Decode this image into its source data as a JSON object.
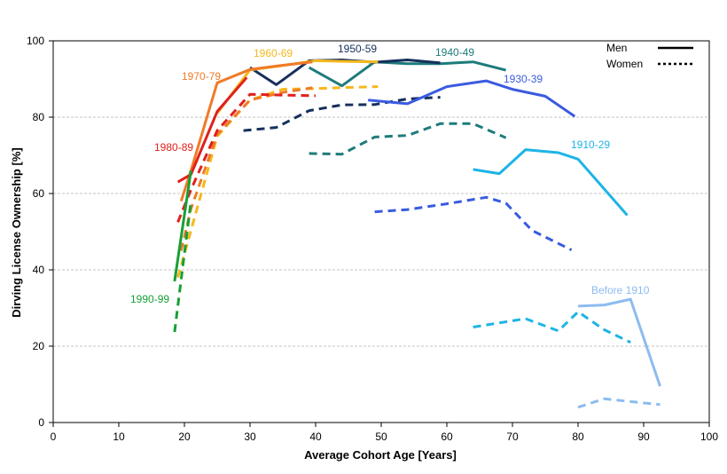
{
  "chart_data": {
    "type": "line",
    "title": "",
    "xlabel": "Average Cohort Age [Years]",
    "ylabel": "Dirving License Ownership [%]",
    "xlim": [
      0,
      100
    ],
    "ylim": [
      0,
      100
    ],
    "x_ticks": [
      0,
      10,
      20,
      30,
      40,
      50,
      60,
      70,
      80,
      90,
      100
    ],
    "y_ticks": [
      0,
      20,
      40,
      60,
      80,
      100
    ],
    "grid": "horizontal dashed",
    "legend": {
      "placement": "top-right",
      "entries": [
        {
          "label": "Men",
          "style": "solid"
        },
        {
          "label": "Women",
          "style": "dotted"
        }
      ]
    },
    "series": [
      {
        "cohort": "Before 1910",
        "color": "#8cbcf0",
        "label": "Before 1910",
        "men": {
          "x": [
            80,
            84,
            88,
            92.5
          ],
          "y": [
            30.5,
            30.8,
            32.3,
            9.5
          ]
        },
        "women": {
          "x": [
            80,
            84,
            88,
            92.5
          ],
          "y": [
            4,
            6.2,
            5.5,
            4.7
          ]
        }
      },
      {
        "cohort": "1910-29",
        "color": "#1eb4e6",
        "label": "1910-29",
        "men": {
          "x": [
            64,
            68,
            72,
            77,
            80,
            87.5
          ],
          "y": [
            66.3,
            65.2,
            71.5,
            70.7,
            69,
            54.3
          ]
        },
        "women": {
          "x": [
            64,
            72,
            77,
            80,
            84,
            88
          ],
          "y": [
            25,
            27.2,
            24,
            29,
            24.3,
            21
          ]
        }
      },
      {
        "cohort": "1930-39",
        "color": "#3a5be0",
        "label": "1930-39",
        "men": {
          "x": [
            48,
            54,
            60,
            66,
            70,
            75,
            79.5
          ],
          "y": [
            84.5,
            83.5,
            88,
            89.5,
            87.3,
            85.5,
            80.2
          ]
        },
        "women": {
          "x": [
            49,
            54,
            60,
            66,
            69,
            73,
            79
          ],
          "y": [
            55.2,
            55.8,
            57.3,
            59,
            57.5,
            50.3,
            45.2
          ]
        }
      },
      {
        "cohort": "1940-49",
        "color": "#1e7b7b",
        "label": "1940-49",
        "men": {
          "x": [
            39,
            44,
            49,
            54,
            59,
            64,
            69
          ],
          "y": [
            93,
            88.2,
            94.5,
            94,
            94,
            94.5,
            92.3
          ]
        },
        "women": {
          "x": [
            39,
            44,
            49,
            54,
            59,
            64,
            69
          ],
          "y": [
            70.5,
            70.3,
            74.8,
            75.2,
            78.3,
            78.3,
            74.6
          ]
        }
      },
      {
        "cohort": "1950-59",
        "color": "#16305c",
        "label": "1950-59",
        "men": {
          "x": [
            30,
            34,
            39,
            44,
            49,
            54,
            59
          ],
          "y": [
            93,
            88.5,
            94.8,
            95,
            94.4,
            95,
            94.2
          ]
        },
        "women": {
          "x": [
            29,
            34,
            39,
            44,
            49,
            54,
            59
          ],
          "y": [
            76.5,
            77.3,
            81.7,
            83.2,
            83.3,
            84.8,
            85.2
          ]
        }
      },
      {
        "cohort": "1960-69",
        "color": "#f5b81c",
        "label": "1960-69",
        "men": {
          "x": [
            25,
            30,
            35,
            40,
            45,
            49.5
          ],
          "y": [
            81,
            92.4,
            93.5,
            94.8,
            94.6,
            94.5
          ]
        },
        "women": {
          "x": [
            19,
            25,
            30,
            35,
            40,
            45,
            49.5
          ],
          "y": [
            38,
            75,
            84.5,
            87.3,
            87.5,
            87.8,
            88
          ]
        }
      },
      {
        "cohort": "1970-79",
        "color": "#f07a28",
        "label": "1970-79",
        "men": {
          "x": [
            19.5,
            21,
            25,
            30,
            35,
            39.5
          ],
          "y": [
            58,
            66,
            89,
            92.5,
            93.6,
            94.5
          ]
        },
        "women": {
          "x": [
            19.5,
            21,
            25,
            30,
            35,
            39.5
          ],
          "y": [
            45,
            56,
            75.5,
            84.5,
            86.5,
            87.7
          ]
        }
      },
      {
        "cohort": "1980-89",
        "color": "#e0201c",
        "label": "1980-89",
        "men": {
          "x": [
            19,
            21,
            25,
            29.5
          ],
          "y": [
            63,
            65,
            81.5,
            90.4
          ]
        },
        "women": {
          "x": [
            19,
            21,
            25,
            30,
            35,
            40
          ],
          "y": [
            52.5,
            61,
            76.5,
            86,
            85.8,
            85.6
          ]
        }
      },
      {
        "cohort": "1990-99",
        "color": "#17a035",
        "label": "1990-99",
        "men": {
          "x": [
            18.5,
            21
          ],
          "y": [
            37,
            66
          ]
        },
        "women": {
          "x": [
            18.5,
            21
          ],
          "y": [
            23.7,
            58
          ]
        }
      }
    ]
  }
}
